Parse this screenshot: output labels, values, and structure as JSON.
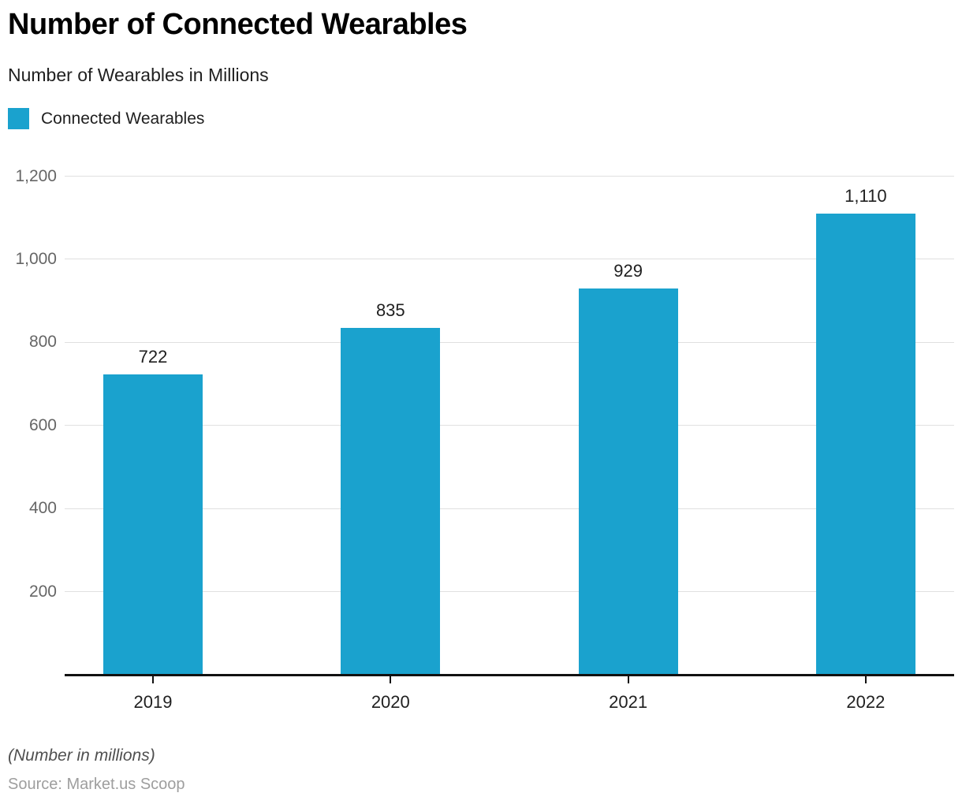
{
  "header": {
    "title": "Number of Connected Wearables",
    "subtitle": "Number of Wearables in Millions"
  },
  "legend": {
    "label": "Connected Wearables",
    "color": "#1AA2CE"
  },
  "chart_data": {
    "type": "bar",
    "title": "Number of Connected Wearables",
    "subtitle": "Number of Wearables in Millions",
    "categories": [
      "2019",
      "2020",
      "2021",
      "2022"
    ],
    "series": [
      {
        "name": "Connected Wearables",
        "values": [
          722,
          835,
          929,
          1110
        ]
      }
    ],
    "value_labels": [
      "722",
      "835",
      "929",
      "1,110"
    ],
    "xlabel": "",
    "ylabel": "",
    "ylim": [
      0,
      1200
    ],
    "yticks": [
      {
        "value": 200,
        "label": "200"
      },
      {
        "value": 400,
        "label": "400"
      },
      {
        "value": 600,
        "label": "600"
      },
      {
        "value": 800,
        "label": "800"
      },
      {
        "value": 1000,
        "label": "1,000"
      },
      {
        "value": 1200,
        "label": "1,200"
      }
    ],
    "grid": "horizontal",
    "legend_position": "top-left",
    "bar_color": "#1AA2CE",
    "gridline_color": "#e0e0e0",
    "axis_color": "#111111"
  },
  "footer": {
    "note": "(Number in millions)",
    "source": "Source: Market.us Scoop"
  }
}
